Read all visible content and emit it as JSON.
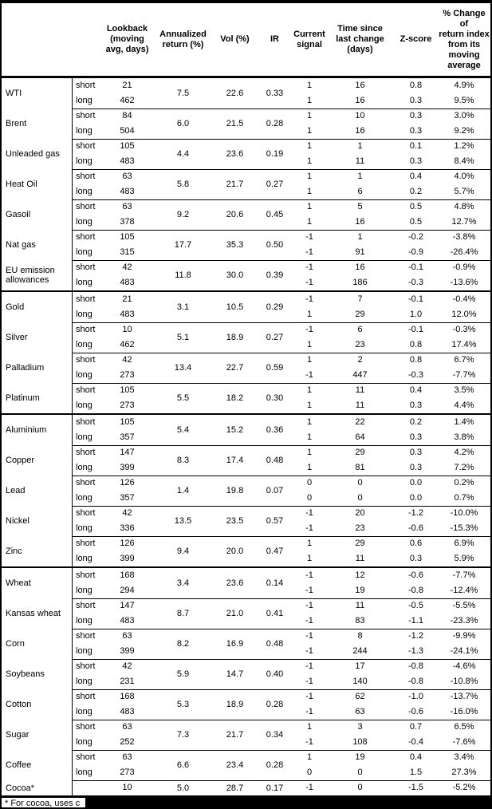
{
  "header": {
    "columns": [
      "",
      "",
      "Lookback\n(moving\navg, days)",
      "Annualized\nreturn (%)",
      "Vol (%)",
      "IR",
      "Current\nsignal",
      "Time since\nlast change\n(days)",
      "Z-score",
      "% Change of\nreturn index\nfrom its\nmoving\naverage"
    ]
  },
  "sections": [
    {
      "name": "energy",
      "commodities": [
        {
          "name": "WTI",
          "annualized_return": "7.5",
          "vol": "22.6",
          "ir": "0.33",
          "legs": [
            {
              "label": "short",
              "lookback": "21",
              "signal": "1",
              "time_since_change": "16",
              "z_score": "0.8",
              "pct_change": "4.9%"
            },
            {
              "label": "long",
              "lookback": "462",
              "signal": "1",
              "time_since_change": "16",
              "z_score": "0.3",
              "pct_change": "9.5%"
            }
          ]
        },
        {
          "name": "Brent",
          "annualized_return": "6.0",
          "vol": "21.5",
          "ir": "0.28",
          "legs": [
            {
              "label": "short",
              "lookback": "84",
              "signal": "1",
              "time_since_change": "10",
              "z_score": "0.3",
              "pct_change": "3.0%"
            },
            {
              "label": "long",
              "lookback": "504",
              "signal": "1",
              "time_since_change": "16",
              "z_score": "0.3",
              "pct_change": "9.2%"
            }
          ]
        },
        {
          "name": "Unleaded gas",
          "annualized_return": "4.4",
          "vol": "23.6",
          "ir": "0.19",
          "legs": [
            {
              "label": "short",
              "lookback": "105",
              "signal": "1",
              "time_since_change": "1",
              "z_score": "0.1",
              "pct_change": "1.2%"
            },
            {
              "label": "long",
              "lookback": "483",
              "signal": "1",
              "time_since_change": "11",
              "z_score": "0.3",
              "pct_change": "8.4%"
            }
          ]
        },
        {
          "name": "Heat Oil",
          "annualized_return": "5.8",
          "vol": "21.7",
          "ir": "0.27",
          "legs": [
            {
              "label": "short",
              "lookback": "63",
              "signal": "1",
              "time_since_change": "1",
              "z_score": "0.4",
              "pct_change": "4.0%"
            },
            {
              "label": "long",
              "lookback": "483",
              "signal": "1",
              "time_since_change": "6",
              "z_score": "0.2",
              "pct_change": "5.7%"
            }
          ]
        },
        {
          "name": "Gasoil",
          "annualized_return": "9.2",
          "vol": "20.6",
          "ir": "0.45",
          "legs": [
            {
              "label": "short",
              "lookback": "63",
              "signal": "1",
              "time_since_change": "5",
              "z_score": "0.5",
              "pct_change": "4.8%"
            },
            {
              "label": "long",
              "lookback": "378",
              "signal": "1",
              "time_since_change": "16",
              "z_score": "0.5",
              "pct_change": "12.7%"
            }
          ]
        },
        {
          "name": "Nat gas",
          "annualized_return": "17.7",
          "vol": "35.3",
          "ir": "0.50",
          "legs": [
            {
              "label": "short",
              "lookback": "105",
              "signal": "-1",
              "time_since_change": "1",
              "z_score": "-0.2",
              "pct_change": "-3.8%"
            },
            {
              "label": "long",
              "lookback": "315",
              "signal": "-1",
              "time_since_change": "91",
              "z_score": "-0.9",
              "pct_change": "-26.4%"
            }
          ]
        },
        {
          "name": "EU emission allowances",
          "annualized_return": "11.8",
          "vol": "30.0",
          "ir": "0.39",
          "legs": [
            {
              "label": "short",
              "lookback": "42",
              "signal": "-1",
              "time_since_change": "16",
              "z_score": "-0.1",
              "pct_change": "-0.9%"
            },
            {
              "label": "long",
              "lookback": "483",
              "signal": "-1",
              "time_since_change": "186",
              "z_score": "-0.3",
              "pct_change": "-13.6%"
            }
          ]
        }
      ]
    },
    {
      "name": "precious-metals",
      "commodities": [
        {
          "name": "Gold",
          "annualized_return": "3.1",
          "vol": "10.5",
          "ir": "0.29",
          "legs": [
            {
              "label": "short",
              "lookback": "21",
              "signal": "-1",
              "time_since_change": "7",
              "z_score": "-0.1",
              "pct_change": "-0.4%"
            },
            {
              "label": "long",
              "lookback": "483",
              "signal": "1",
              "time_since_change": "29",
              "z_score": "1.0",
              "pct_change": "12.0%"
            }
          ]
        },
        {
          "name": "Silver",
          "annualized_return": "5.1",
          "vol": "18.9",
          "ir": "0.27",
          "legs": [
            {
              "label": "short",
              "lookback": "10",
              "signal": "-1",
              "time_since_change": "6",
              "z_score": "-0.1",
              "pct_change": "-0.3%"
            },
            {
              "label": "long",
              "lookback": "462",
              "signal": "1",
              "time_since_change": "23",
              "z_score": "0.8",
              "pct_change": "17.4%"
            }
          ]
        },
        {
          "name": "Palladium",
          "annualized_return": "13.4",
          "vol": "22.7",
          "ir": "0.59",
          "legs": [
            {
              "label": "short",
              "lookback": "42",
              "signal": "1",
              "time_since_change": "2",
              "z_score": "0.8",
              "pct_change": "6.7%"
            },
            {
              "label": "long",
              "lookback": "273",
              "signal": "-1",
              "time_since_change": "447",
              "z_score": "-0.3",
              "pct_change": "-7.7%"
            }
          ]
        },
        {
          "name": "Platinum",
          "annualized_return": "5.5",
          "vol": "18.2",
          "ir": "0.30",
          "legs": [
            {
              "label": "short",
              "lookback": "105",
              "signal": "1",
              "time_since_change": "11",
              "z_score": "0.4",
              "pct_change": "3.5%"
            },
            {
              "label": "long",
              "lookback": "273",
              "signal": "1",
              "time_since_change": "11",
              "z_score": "0.3",
              "pct_change": "4.4%"
            }
          ]
        }
      ]
    },
    {
      "name": "base-metals",
      "commodities": [
        {
          "name": "Aluminium",
          "annualized_return": "5.4",
          "vol": "15.2",
          "ir": "0.36",
          "legs": [
            {
              "label": "short",
              "lookback": "105",
              "signal": "1",
              "time_since_change": "22",
              "z_score": "0.2",
              "pct_change": "1.4%"
            },
            {
              "label": "long",
              "lookback": "357",
              "signal": "1",
              "time_since_change": "64",
              "z_score": "0.3",
              "pct_change": "3.8%"
            }
          ]
        },
        {
          "name": "Copper",
          "annualized_return": "8.3",
          "vol": "17.4",
          "ir": "0.48",
          "legs": [
            {
              "label": "short",
              "lookback": "147",
              "signal": "1",
              "time_since_change": "29",
              "z_score": "0.3",
              "pct_change": "4.2%"
            },
            {
              "label": "long",
              "lookback": "399",
              "signal": "1",
              "time_since_change": "81",
              "z_score": "0.3",
              "pct_change": "7.2%"
            }
          ]
        },
        {
          "name": "Lead",
          "annualized_return": "1.4",
          "vol": "19.8",
          "ir": "0.07",
          "legs": [
            {
              "label": "short",
              "lookback": "126",
              "signal": "0",
              "time_since_change": "0",
              "z_score": "0.0",
              "pct_change": "0.2%"
            },
            {
              "label": "long",
              "lookback": "357",
              "signal": "0",
              "time_since_change": "0",
              "z_score": "0.0",
              "pct_change": "0.7%"
            }
          ]
        },
        {
          "name": "Nickel",
          "annualized_return": "13.5",
          "vol": "23.5",
          "ir": "0.57",
          "legs": [
            {
              "label": "short",
              "lookback": "42",
              "signal": "-1",
              "time_since_change": "20",
              "z_score": "-1.2",
              "pct_change": "-10.0%"
            },
            {
              "label": "long",
              "lookback": "336",
              "signal": "-1",
              "time_since_change": "23",
              "z_score": "-0.6",
              "pct_change": "-15.3%"
            }
          ]
        },
        {
          "name": "Zinc",
          "annualized_return": "9.4",
          "vol": "20.0",
          "ir": "0.47",
          "legs": [
            {
              "label": "short",
              "lookback": "126",
              "signal": "1",
              "time_since_change": "29",
              "z_score": "0.6",
              "pct_change": "6.9%"
            },
            {
              "label": "long",
              "lookback": "399",
              "signal": "1",
              "time_since_change": "11",
              "z_score": "0.3",
              "pct_change": "5.9%"
            }
          ]
        }
      ]
    },
    {
      "name": "agriculture",
      "commodities": [
        {
          "name": "Wheat",
          "annualized_return": "3.4",
          "vol": "23.6",
          "ir": "0.14",
          "legs": [
            {
              "label": "short",
              "lookback": "168",
              "signal": "-1",
              "time_since_change": "12",
              "z_score": "-0.6",
              "pct_change": "-7.7%"
            },
            {
              "label": "long",
              "lookback": "294",
              "signal": "-1",
              "time_since_change": "19",
              "z_score": "-0.8",
              "pct_change": "-12.4%"
            }
          ]
        },
        {
          "name": "Kansas wheat",
          "annualized_return": "8.7",
          "vol": "21.0",
          "ir": "0.41",
          "legs": [
            {
              "label": "short",
              "lookback": "147",
              "signal": "-1",
              "time_since_change": "11",
              "z_score": "-0.5",
              "pct_change": "-5.5%"
            },
            {
              "label": "long",
              "lookback": "483",
              "signal": "-1",
              "time_since_change": "83",
              "z_score": "-1.1",
              "pct_change": "-23.3%"
            }
          ]
        },
        {
          "name": "Corn",
          "annualized_return": "8.2",
          "vol": "16.9",
          "ir": "0.48",
          "legs": [
            {
              "label": "short",
              "lookback": "63",
              "signal": "-1",
              "time_since_change": "8",
              "z_score": "-1.2",
              "pct_change": "-9.9%"
            },
            {
              "label": "long",
              "lookback": "399",
              "signal": "-1",
              "time_since_change": "244",
              "z_score": "-1.3",
              "pct_change": "-24.1%"
            }
          ]
        },
        {
          "name": "Soybeans",
          "annualized_return": "5.9",
          "vol": "14.7",
          "ir": "0.40",
          "legs": [
            {
              "label": "short",
              "lookback": "42",
              "signal": "-1",
              "time_since_change": "17",
              "z_score": "-0.8",
              "pct_change": "-4.6%"
            },
            {
              "label": "long",
              "lookback": "231",
              "signal": "-1",
              "time_since_change": "140",
              "z_score": "-0.8",
              "pct_change": "-10.8%"
            }
          ]
        },
        {
          "name": "Cotton",
          "annualized_return": "5.3",
          "vol": "18.9",
          "ir": "0.28",
          "legs": [
            {
              "label": "short",
              "lookback": "168",
              "signal": "-1",
              "time_since_change": "62",
              "z_score": "-1.0",
              "pct_change": "-13.7%"
            },
            {
              "label": "long",
              "lookback": "483",
              "signal": "-1",
              "time_since_change": "63",
              "z_score": "-0.6",
              "pct_change": "-16.0%"
            }
          ]
        },
        {
          "name": "Sugar",
          "annualized_return": "7.3",
          "vol": "21.7",
          "ir": "0.34",
          "legs": [
            {
              "label": "short",
              "lookback": "63",
              "signal": "1",
              "time_since_change": "3",
              "z_score": "0.7",
              "pct_change": "6.5%"
            },
            {
              "label": "long",
              "lookback": "252",
              "signal": "-1",
              "time_since_change": "108",
              "z_score": "-0.4",
              "pct_change": "-7.6%"
            }
          ]
        },
        {
          "name": "Coffee",
          "annualized_return": "6.6",
          "vol": "23.4",
          "ir": "0.28",
          "legs": [
            {
              "label": "short",
              "lookback": "63",
              "signal": "1",
              "time_since_change": "19",
              "z_score": "0.4",
              "pct_change": "3.4%"
            },
            {
              "label": "long",
              "lookback": "273",
              "signal": "0",
              "time_since_change": "0",
              "z_score": "1.5",
              "pct_change": "27.3%"
            }
          ]
        },
        {
          "name": "Cocoa*",
          "annualized_return": "5.0",
          "vol": "28.7",
          "ir": "0.17",
          "legs": [
            {
              "label": "",
              "lookback": "10",
              "signal": "-1",
              "time_since_change": "0",
              "z_score": "-1.5",
              "pct_change": "-5.2%"
            }
          ]
        }
      ]
    }
  ],
  "footnote": {
    "visible_text": "* For cocoa, uses c",
    "redacted": true
  }
}
